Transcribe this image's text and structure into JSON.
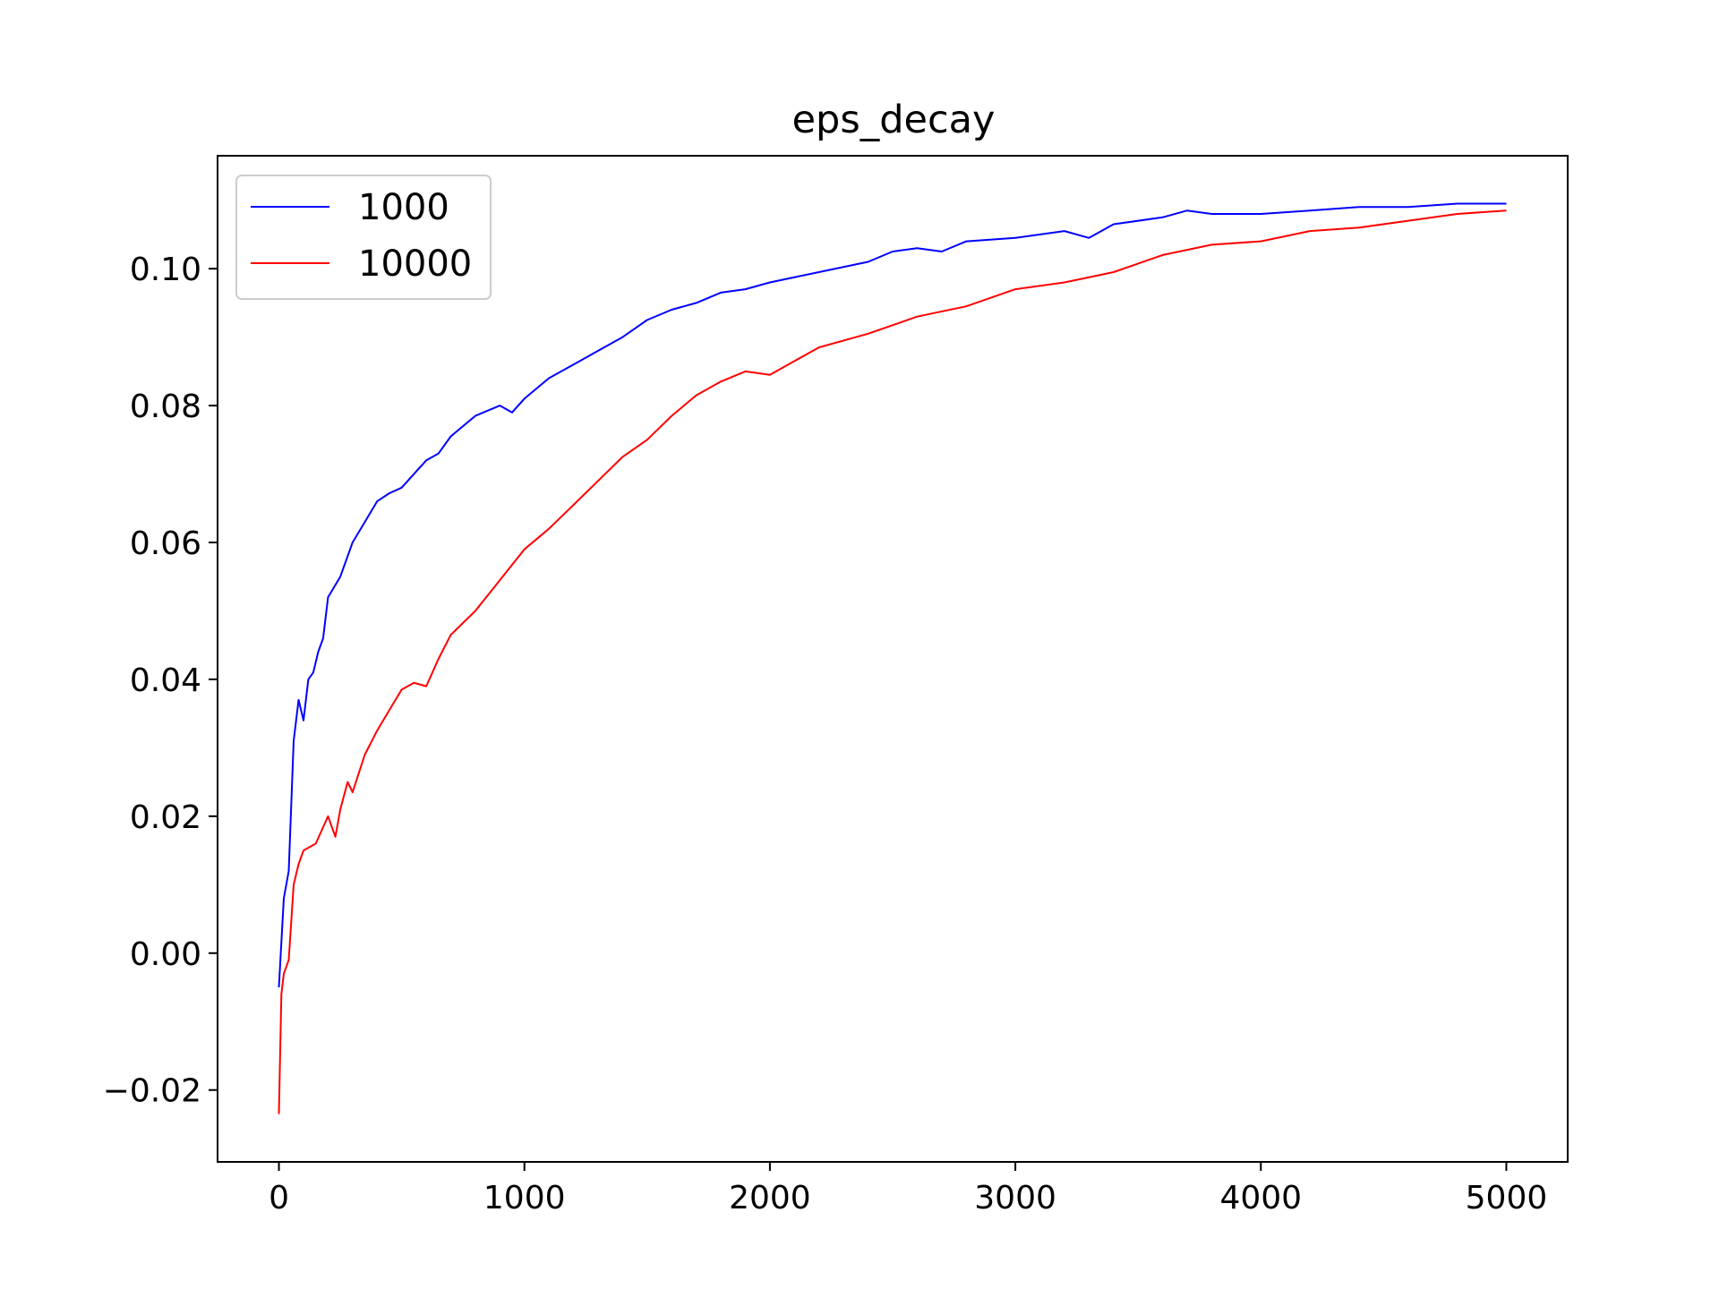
{
  "chart_data": {
    "type": "line",
    "title": "eps_decay",
    "xlabel": "",
    "ylabel": "",
    "xlim": [
      -250,
      5250
    ],
    "ylim": [
      -0.0305,
      0.1165
    ],
    "x_ticks": [
      0,
      1000,
      2000,
      3000,
      4000,
      5000
    ],
    "x_tick_labels": [
      "0",
      "1000",
      "2000",
      "3000",
      "4000",
      "5000"
    ],
    "y_ticks": [
      -0.02,
      0.0,
      0.02,
      0.04,
      0.06,
      0.08,
      0.1
    ],
    "y_tick_labels": [
      "−0.02",
      "0.00",
      "0.02",
      "0.04",
      "0.06",
      "0.08",
      "0.10"
    ],
    "grid": false,
    "legend_position": "top-left",
    "series": [
      {
        "name": "1000",
        "color": "#0000ff",
        "x": [
          0,
          20,
          40,
          60,
          80,
          100,
          120,
          140,
          160,
          180,
          200,
          250,
          300,
          350,
          400,
          450,
          500,
          550,
          600,
          650,
          700,
          800,
          900,
          950,
          1000,
          1100,
          1200,
          1300,
          1400,
          1500,
          1600,
          1700,
          1800,
          1900,
          2000,
          2200,
          2400,
          2500,
          2600,
          2700,
          2800,
          3000,
          3200,
          3300,
          3400,
          3600,
          3700,
          3800,
          4000,
          4200,
          4400,
          4600,
          4800,
          5000
        ],
        "y": [
          -0.005,
          0.008,
          0.012,
          0.031,
          0.037,
          0.034,
          0.04,
          0.041,
          0.044,
          0.046,
          0.052,
          0.055,
          0.06,
          0.063,
          0.066,
          0.0672,
          0.068,
          0.07,
          0.072,
          0.073,
          0.0755,
          0.0785,
          0.08,
          0.079,
          0.081,
          0.084,
          0.086,
          0.088,
          0.09,
          0.0925,
          0.094,
          0.095,
          0.0965,
          0.097,
          0.098,
          0.0995,
          0.101,
          0.1025,
          0.103,
          0.1025,
          0.104,
          0.1045,
          0.1055,
          0.1045,
          0.1065,
          0.1075,
          0.1085,
          0.108,
          0.108,
          0.1085,
          0.109,
          0.109,
          0.1095,
          0.1095
        ]
      },
      {
        "name": "10000",
        "color": "#ff0000",
        "x": [
          0,
          10,
          20,
          40,
          60,
          80,
          100,
          150,
          200,
          230,
          250,
          280,
          300,
          350,
          400,
          450,
          500,
          550,
          600,
          650,
          700,
          800,
          900,
          1000,
          1100,
          1200,
          1300,
          1400,
          1500,
          1600,
          1700,
          1800,
          1900,
          2000,
          2100,
          2200,
          2400,
          2600,
          2800,
          3000,
          3200,
          3400,
          3600,
          3800,
          4000,
          4200,
          4400,
          4600,
          4800,
          5000
        ],
        "y": [
          -0.0235,
          -0.006,
          -0.003,
          -0.001,
          0.01,
          0.013,
          0.015,
          0.016,
          0.02,
          0.017,
          0.021,
          0.025,
          0.0235,
          0.029,
          0.0325,
          0.0355,
          0.0385,
          0.0395,
          0.039,
          0.043,
          0.0465,
          0.05,
          0.0545,
          0.059,
          0.062,
          0.0655,
          0.069,
          0.0725,
          0.075,
          0.0785,
          0.0815,
          0.0835,
          0.085,
          0.0845,
          0.0865,
          0.0885,
          0.0905,
          0.093,
          0.0945,
          0.097,
          0.098,
          0.0995,
          0.102,
          0.1035,
          0.104,
          0.1055,
          0.106,
          0.107,
          0.108,
          0.1085
        ]
      }
    ]
  }
}
